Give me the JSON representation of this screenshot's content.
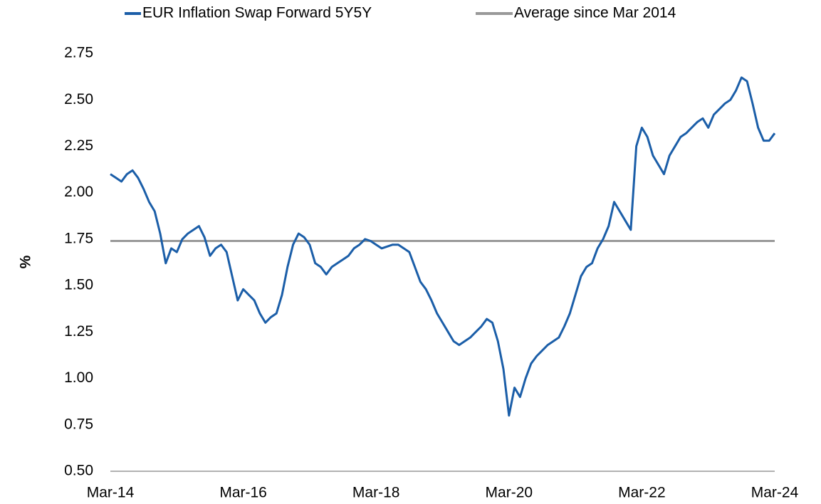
{
  "chart_data": {
    "type": "line",
    "y_label": "%",
    "x": [
      "Mar-14",
      "Apr-14",
      "May-14",
      "Jun-14",
      "Jul-14",
      "Aug-14",
      "Sep-14",
      "Oct-14",
      "Nov-14",
      "Dec-14",
      "Jan-15",
      "Feb-15",
      "Mar-15",
      "Apr-15",
      "May-15",
      "Jun-15",
      "Jul-15",
      "Aug-15",
      "Sep-15",
      "Oct-15",
      "Nov-15",
      "Dec-15",
      "Jan-16",
      "Feb-16",
      "Mar-16",
      "Apr-16",
      "May-16",
      "Jun-16",
      "Jul-16",
      "Aug-16",
      "Sep-16",
      "Oct-16",
      "Nov-16",
      "Dec-16",
      "Jan-17",
      "Feb-17",
      "Mar-17",
      "Apr-17",
      "May-17",
      "Jun-17",
      "Jul-17",
      "Aug-17",
      "Sep-17",
      "Oct-17",
      "Nov-17",
      "Dec-17",
      "Jan-18",
      "Feb-18",
      "Mar-18",
      "Apr-18",
      "May-18",
      "Jun-18",
      "Jul-18",
      "Aug-18",
      "Sep-18",
      "Oct-18",
      "Nov-18",
      "Dec-18",
      "Jan-19",
      "Feb-19",
      "Mar-19",
      "Apr-19",
      "May-19",
      "Jun-19",
      "Jul-19",
      "Aug-19",
      "Sep-19",
      "Oct-19",
      "Nov-19",
      "Dec-19",
      "Jan-20",
      "Feb-20",
      "Mar-20",
      "Apr-20",
      "May-20",
      "Jun-20",
      "Jul-20",
      "Aug-20",
      "Sep-20",
      "Oct-20",
      "Nov-20",
      "Dec-20",
      "Jan-21",
      "Feb-21",
      "Mar-21",
      "Apr-21",
      "May-21",
      "Jun-21",
      "Jul-21",
      "Aug-21",
      "Sep-21",
      "Oct-21",
      "Nov-21",
      "Dec-21",
      "Jan-22",
      "Feb-22",
      "Mar-22",
      "Apr-22",
      "May-22",
      "Jun-22",
      "Jul-22",
      "Aug-22",
      "Sep-22",
      "Oct-22",
      "Nov-22",
      "Dec-22",
      "Jan-23",
      "Feb-23",
      "Mar-23",
      "Apr-23",
      "May-23",
      "Jun-23",
      "Jul-23",
      "Aug-23",
      "Sep-23",
      "Oct-23",
      "Nov-23",
      "Dec-23",
      "Jan-24",
      "Feb-24",
      "Mar-24"
    ],
    "xticks": [
      "Mar-14",
      "Mar-16",
      "Mar-18",
      "Mar-20",
      "Mar-22",
      "Mar-24"
    ],
    "series": [
      {
        "name": "EUR Inflation Swap Forward 5Y5Y",
        "color": "#1b5ea8",
        "values": [
          2.1,
          2.08,
          2.06,
          2.1,
          2.12,
          2.08,
          2.02,
          1.95,
          1.9,
          1.78,
          1.62,
          1.7,
          1.68,
          1.75,
          1.78,
          1.8,
          1.82,
          1.76,
          1.66,
          1.7,
          1.72,
          1.68,
          1.55,
          1.42,
          1.48,
          1.45,
          1.42,
          1.35,
          1.3,
          1.33,
          1.35,
          1.45,
          1.6,
          1.72,
          1.78,
          1.76,
          1.72,
          1.62,
          1.6,
          1.56,
          1.6,
          1.62,
          1.64,
          1.66,
          1.7,
          1.72,
          1.75,
          1.74,
          1.72,
          1.7,
          1.71,
          1.72,
          1.72,
          1.7,
          1.68,
          1.6,
          1.52,
          1.48,
          1.42,
          1.35,
          1.3,
          1.25,
          1.2,
          1.18,
          1.2,
          1.22,
          1.25,
          1.28,
          1.32,
          1.3,
          1.2,
          1.05,
          0.8,
          0.95,
          0.9,
          1.0,
          1.08,
          1.12,
          1.15,
          1.18,
          1.2,
          1.22,
          1.28,
          1.35,
          1.45,
          1.55,
          1.6,
          1.62,
          1.7,
          1.75,
          1.82,
          1.95,
          1.9,
          1.85,
          1.8,
          2.25,
          2.35,
          2.3,
          2.2,
          2.15,
          2.1,
          2.2,
          2.25,
          2.3,
          2.32,
          2.35,
          2.38,
          2.4,
          2.35,
          2.42,
          2.45,
          2.48,
          2.5,
          2.55,
          2.62,
          2.6,
          2.48,
          2.35,
          2.28,
          2.28,
          2.32
        ]
      },
      {
        "name": "Average since Mar 2014",
        "color": "#999999",
        "value": 1.74
      }
    ],
    "ylim": [
      0.5,
      2.75
    ],
    "yticks": [
      {
        "value": 0.5,
        "label": "0.50"
      },
      0.75,
      {
        "value": 1,
        "label": "1.00"
      },
      1.25,
      {
        "value": 1.5,
        "label": "1.50"
      },
      1.75,
      {
        "value": 2,
        "label": "2.00"
      },
      2.25,
      {
        "value": 2.5,
        "label": "2.50"
      },
      2.75
    ]
  }
}
